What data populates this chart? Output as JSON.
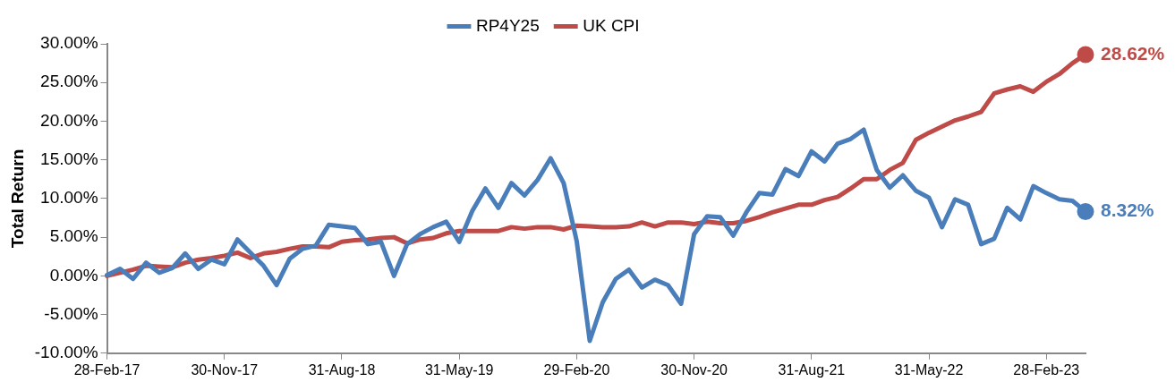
{
  "chart_data": {
    "type": "line",
    "ylabel": "Total Return",
    "categories": [
      "28-Feb-17",
      null,
      null,
      null,
      null,
      null,
      null,
      null,
      null,
      "30-Nov-17",
      null,
      null,
      null,
      null,
      null,
      null,
      null,
      null,
      "31-Aug-18",
      null,
      null,
      null,
      null,
      null,
      null,
      null,
      null,
      "31-May-19",
      null,
      null,
      null,
      null,
      null,
      null,
      null,
      null,
      "29-Feb-20",
      null,
      null,
      null,
      null,
      null,
      null,
      null,
      null,
      "30-Nov-20",
      null,
      null,
      null,
      null,
      null,
      null,
      null,
      null,
      "31-Aug-21",
      null,
      null,
      null,
      null,
      null,
      null,
      null,
      null,
      "31-May-22",
      null,
      null,
      null,
      null,
      null,
      null,
      null,
      null,
      "28-Feb-23",
      null,
      null,
      null
    ],
    "series": [
      {
        "name": "RP4Y25",
        "color": "#4a7ebb",
        "values": [
          0.1,
          0.9,
          -0.4,
          1.7,
          0.4,
          1.0,
          2.9,
          0.9,
          2.1,
          1.5,
          4.7,
          3.0,
          1.3,
          -1.2,
          2.2,
          3.5,
          3.9,
          6.6,
          6.4,
          6.2,
          4.1,
          4.4,
          0.0,
          4.1,
          5.4,
          6.3,
          7.0,
          4.4,
          8.4,
          11.3,
          8.8,
          12.0,
          10.4,
          12.4,
          15.2,
          12.0,
          4.5,
          -8.4,
          -3.4,
          -0.4,
          0.8,
          -1.5,
          -0.5,
          -1.2,
          -3.6,
          5.4,
          7.7,
          7.6,
          5.2,
          8.2,
          10.7,
          10.5,
          13.8,
          12.9,
          16.1,
          14.8,
          17.1,
          17.7,
          18.9,
          13.7,
          11.4,
          13.0,
          11.0,
          10.1,
          6.3,
          9.9,
          9.2,
          4.1,
          4.8,
          8.8,
          7.3,
          11.6,
          10.7,
          9.9,
          9.7,
          8.32
        ],
        "value_labels": [
          null,
          null,
          null,
          null,
          null,
          null,
          null,
          null,
          null,
          null,
          null,
          null,
          null,
          null,
          null,
          null,
          null,
          null,
          null,
          null,
          null,
          null,
          null,
          null,
          null,
          null,
          null,
          null,
          null,
          null,
          null,
          null,
          null,
          null,
          null,
          null,
          null,
          null,
          null,
          null,
          null,
          null,
          null,
          null,
          null,
          null,
          null,
          null,
          null,
          null,
          null,
          null,
          null,
          null,
          null,
          null,
          null,
          null,
          null,
          null,
          null,
          null,
          null,
          null,
          null,
          null,
          null,
          null,
          null,
          null,
          null,
          null,
          null,
          null,
          null,
          "8.32%"
        ]
      },
      {
        "name": "UK CPI",
        "color": "#be4b48",
        "values": [
          0.0,
          0.4,
          0.8,
          1.3,
          1.2,
          1.1,
          1.7,
          2.1,
          2.3,
          2.6,
          3.0,
          2.3,
          2.9,
          3.1,
          3.5,
          3.8,
          3.8,
          3.7,
          4.4,
          4.6,
          4.7,
          4.9,
          5.0,
          4.2,
          4.7,
          4.9,
          5.5,
          5.8,
          5.8,
          5.8,
          5.8,
          6.3,
          6.1,
          6.3,
          6.3,
          6.0,
          6.5,
          6.4,
          6.3,
          6.3,
          6.4,
          6.9,
          6.4,
          6.9,
          6.9,
          6.7,
          7.0,
          6.8,
          6.8,
          7.1,
          7.6,
          8.2,
          8.7,
          9.2,
          9.2,
          9.8,
          10.2,
          11.3,
          12.5,
          12.5,
          13.7,
          14.6,
          17.6,
          18.5,
          19.3,
          20.1,
          20.6,
          21.2,
          23.6,
          24.1,
          24.5,
          23.8,
          25.1,
          26.1,
          27.5,
          28.62
        ],
        "value_labels": [
          null,
          null,
          null,
          null,
          null,
          null,
          null,
          null,
          null,
          null,
          null,
          null,
          null,
          null,
          null,
          null,
          null,
          null,
          null,
          null,
          null,
          null,
          null,
          null,
          null,
          null,
          null,
          null,
          null,
          null,
          null,
          null,
          null,
          null,
          null,
          null,
          null,
          null,
          null,
          null,
          null,
          null,
          null,
          null,
          null,
          null,
          null,
          null,
          null,
          null,
          null,
          null,
          null,
          null,
          null,
          null,
          null,
          null,
          null,
          null,
          null,
          null,
          null,
          null,
          null,
          null,
          null,
          null,
          null,
          null,
          null,
          null,
          null,
          null,
          null,
          "28.62%"
        ]
      }
    ],
    "ylim": [
      -10,
      30
    ],
    "yticks": [
      {
        "value": -10,
        "label": "-10.00%"
      },
      {
        "value": -5,
        "label": "-5.00%"
      },
      {
        "value": 0,
        "label": "0.00%"
      },
      {
        "value": 5,
        "label": "5.00%"
      },
      {
        "value": 10,
        "label": "10.00%"
      },
      {
        "value": 15,
        "label": "15.00%"
      },
      {
        "value": 20,
        "label": "20.00%"
      },
      {
        "value": 25,
        "label": "25.00%"
      },
      {
        "value": 30,
        "label": "30.00%"
      }
    ],
    "grid": false,
    "legend": "top",
    "marker": "none",
    "line_style": "solid"
  }
}
